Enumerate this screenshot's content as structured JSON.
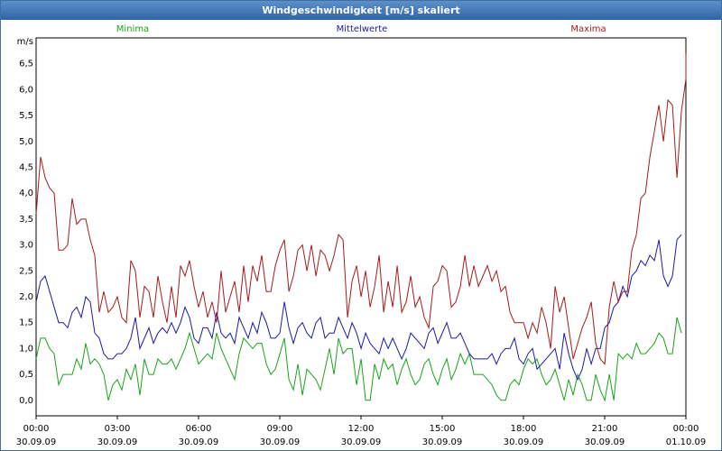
{
  "window": {
    "title": "Windgeschwindigkeit [m/s] skaliert"
  },
  "chart_data": {
    "type": "line",
    "title": "Windgeschwindigkeit [m/s] skaliert",
    "ylabel": "m/s",
    "xlabel": "",
    "ylim": [
      -0.3,
      7.0
    ],
    "xlim": [
      0,
      24
    ],
    "grid": true,
    "legend_placement": "top",
    "yticks": [
      "0,0",
      "0,5",
      "1,0",
      "1,5",
      "2,0",
      "2,5",
      "3,0",
      "3,5",
      "4,0",
      "4,5",
      "5,0",
      "5,5",
      "6,0",
      "6,5"
    ],
    "ytick_values": [
      0,
      0.5,
      1,
      1.5,
      2,
      2.5,
      3,
      3.5,
      4,
      4.5,
      5,
      5.5,
      6,
      6.5
    ],
    "xticks": [
      {
        "time": "00:00",
        "date": "30.09.09"
      },
      {
        "time": "03:00",
        "date": "30.09.09"
      },
      {
        "time": "06:00",
        "date": "30.09.09"
      },
      {
        "time": "09:00",
        "date": "30.09.09"
      },
      {
        "time": "12:00",
        "date": "30.09.09"
      },
      {
        "time": "15:00",
        "date": "30.09.09"
      },
      {
        "time": "18:00",
        "date": "30.09.09"
      },
      {
        "time": "21:00",
        "date": "30.09.09"
      },
      {
        "time": "00:00",
        "date": "01.10.09"
      }
    ],
    "xtick_values": [
      0,
      3,
      6,
      9,
      12,
      15,
      18,
      21,
      24
    ],
    "x_step_hours": 0.1667,
    "series": [
      {
        "name": "Minima",
        "color": "#1aa31a",
        "values": [
          0.8,
          1.2,
          1.2,
          1.0,
          0.9,
          0.3,
          0.5,
          0.5,
          0.5,
          0.8,
          0.6,
          1.1,
          0.7,
          0.8,
          0.7,
          0.5,
          0.0,
          0.3,
          0.4,
          0.2,
          0.6,
          0.4,
          0.7,
          0.1,
          0.8,
          0.5,
          0.5,
          0.8,
          0.7,
          0.7,
          0.8,
          0.6,
          0.8,
          1.0,
          1.3,
          1.0,
          0.7,
          0.8,
          0.9,
          0.8,
          1.3,
          1.0,
          0.8,
          0.6,
          0.4,
          0.9,
          1.2,
          1.1,
          1.0,
          1.1,
          1.1,
          0.7,
          0.5,
          0.6,
          0.9,
          1.2,
          0.4,
          0.2,
          0.7,
          0.1,
          0.6,
          0.5,
          0.4,
          0.2,
          0.6,
          1.0,
          0.5,
          1.2,
          0.9,
          1.0,
          1.0,
          0.3,
          0.8,
          0.0,
          0.0,
          0.7,
          0.4,
          0.8,
          0.6,
          0.7,
          0.3,
          0.6,
          0.8,
          0.5,
          0.3,
          0.4,
          0.7,
          0.8,
          0.5,
          0.3,
          0.6,
          0.8,
          0.4,
          0.6,
          0.9,
          0.7,
          0.9,
          0.5,
          0.5,
          0.5,
          0.4,
          0.3,
          0.1,
          0.0,
          0.0,
          0.3,
          0.4,
          0.3,
          0.6,
          0.8,
          0.7,
          0.8,
          0.5,
          0.3,
          0.4,
          0.6,
          0.3,
          0.0,
          0.4,
          0.1,
          0.5,
          0.3,
          0.0,
          0.0,
          0.5,
          0.2,
          0.0,
          0.5,
          0.0,
          0.9,
          0.8,
          0.9,
          0.8,
          1.1,
          0.9,
          0.9,
          1.0,
          1.1,
          1.3,
          1.2,
          0.9,
          0.9,
          1.6,
          1.3
        ]
      },
      {
        "name": "Mittelwerte",
        "color": "#1a1aa8",
        "values": [
          1.9,
          2.3,
          2.4,
          2.1,
          1.8,
          1.5,
          1.5,
          1.4,
          1.7,
          1.8,
          1.6,
          2.0,
          1.9,
          1.3,
          1.2,
          0.9,
          0.8,
          0.8,
          0.9,
          0.9,
          1.0,
          1.2,
          1.6,
          1.0,
          1.2,
          1.4,
          1.1,
          1.3,
          1.4,
          1.3,
          1.5,
          1.3,
          1.5,
          1.8,
          1.6,
          1.2,
          1.1,
          1.4,
          1.4,
          1.2,
          1.7,
          1.3,
          1.2,
          1.3,
          1.1,
          1.6,
          1.4,
          1.2,
          1.5,
          1.3,
          1.7,
          1.5,
          1.2,
          1.2,
          1.3,
          1.9,
          1.4,
          1.1,
          1.4,
          1.5,
          1.3,
          1.2,
          1.5,
          1.6,
          1.2,
          1.3,
          1.3,
          1.6,
          1.4,
          1.2,
          1.5,
          1.3,
          1.0,
          1.3,
          1.1,
          1.0,
          0.9,
          1.2,
          1.0,
          1.2,
          1.0,
          0.8,
          1.0,
          1.3,
          1.2,
          1.1,
          1.0,
          1.3,
          1.4,
          1.1,
          1.3,
          1.5,
          1.2,
          1.2,
          1.3,
          1.1,
          0.9,
          0.8,
          0.8,
          0.8,
          0.8,
          0.9,
          0.7,
          0.9,
          1.0,
          1.0,
          1.2,
          0.8,
          0.7,
          0.9,
          1.0,
          0.6,
          0.7,
          0.8,
          0.9,
          1.0,
          0.6,
          1.3,
          0.9,
          0.6,
          0.4,
          0.6,
          1.0,
          0.7,
          1.0,
          1.0,
          1.4,
          1.5,
          1.8,
          1.9,
          2.2,
          2.0,
          2.4,
          2.5,
          2.7,
          2.6,
          2.8,
          2.7,
          3.1,
          2.4,
          2.2,
          2.4,
          3.1,
          3.2
        ]
      },
      {
        "name": "Maxima",
        "color": "#a81a1a",
        "values": [
          3.6,
          4.7,
          4.3,
          4.1,
          4.0,
          2.9,
          2.9,
          3.0,
          3.9,
          3.4,
          3.5,
          3.5,
          3.1,
          2.8,
          1.7,
          2.1,
          1.7,
          1.8,
          2.0,
          1.6,
          1.5,
          2.7,
          2.5,
          1.6,
          2.2,
          2.1,
          1.6,
          2.4,
          1.9,
          1.5,
          2.2,
          1.6,
          2.6,
          2.4,
          2.7,
          2.2,
          1.8,
          2.1,
          1.6,
          1.9,
          1.5,
          2.5,
          1.7,
          2.0,
          2.3,
          1.7,
          2.6,
          1.9,
          2.6,
          2.3,
          2.8,
          2.1,
          2.1,
          2.6,
          2.9,
          3.1,
          2.1,
          2.4,
          2.9,
          3.0,
          2.5,
          3.0,
          2.4,
          2.9,
          2.8,
          2.5,
          2.8,
          3.2,
          3.1,
          1.6,
          2.3,
          2.6,
          2.0,
          2.5,
          1.8,
          2.2,
          2.8,
          1.7,
          2.3,
          1.8,
          2.6,
          1.7,
          1.9,
          2.4,
          1.8,
          2.0,
          1.6,
          1.4,
          2.2,
          2.3,
          2.6,
          2.5,
          1.8,
          1.9,
          2.2,
          2.8,
          2.2,
          2.6,
          2.2,
          2.4,
          2.6,
          2.3,
          2.5,
          2.1,
          2.2,
          1.7,
          1.5,
          1.5,
          1.5,
          1.2,
          1.5,
          1.3,
          1.8,
          1.5,
          1.0,
          2.2,
          1.7,
          2.0,
          1.4,
          0.8,
          1.1,
          1.4,
          1.6,
          1.9,
          1.1,
          0.8,
          0.7,
          1.8,
          2.3,
          1.9,
          2.1,
          2.1,
          2.9,
          3.2,
          3.9,
          4.0,
          4.7,
          5.2,
          5.7,
          5.0,
          5.8,
          5.7,
          4.3,
          5.6,
          6.2,
          6.7
        ]
      }
    ]
  }
}
